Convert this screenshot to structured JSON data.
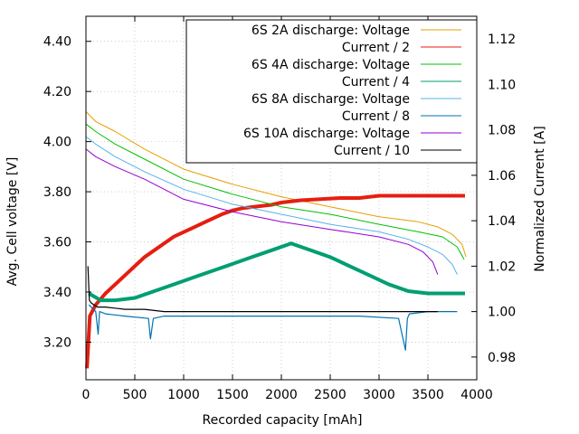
{
  "chart_data": {
    "type": "line",
    "xlabel": "Recorded capacity [mAh]",
    "ylabel": "Avg. Cell voltage [V]",
    "y2label": "Normalized Current [A]",
    "xlim": [
      0,
      4000
    ],
    "ylim": [
      3.05,
      4.5
    ],
    "y2lim": [
      0.97,
      1.13
    ],
    "xticks": [
      0,
      500,
      1000,
      1500,
      2000,
      2500,
      3000,
      3500,
      4000
    ],
    "yticks": [
      3.2,
      3.4,
      3.6,
      3.8,
      4.0,
      4.2,
      4.4
    ],
    "y2ticks": [
      0.98,
      1.0,
      1.02,
      1.04,
      1.06,
      1.08,
      1.1,
      1.12
    ],
    "xtick_labels": [
      "0",
      "500",
      "1000",
      "1500",
      "2000",
      "2500",
      "3000",
      "3500",
      "4000"
    ],
    "ytick_labels": [
      "3.20",
      "3.40",
      "3.60",
      "3.80",
      "4.00",
      "4.20",
      "4.40"
    ],
    "y2tick_labels": [
      "0.98",
      "1.00",
      "1.02",
      "1.04",
      "1.06",
      "1.08",
      "1.10",
      "1.12"
    ],
    "legend": "top-right",
    "series": [
      {
        "name": "6S 2A discharge: Voltage",
        "axis": "y",
        "color": "#e69f00",
        "x": [
          0,
          100,
          300,
          600,
          1000,
          1500,
          2000,
          2500,
          3000,
          3400,
          3600,
          3750,
          3850,
          3890
        ],
        "y": [
          4.12,
          4.08,
          4.04,
          3.97,
          3.89,
          3.83,
          3.78,
          3.74,
          3.7,
          3.68,
          3.66,
          3.63,
          3.59,
          3.54
        ]
      },
      {
        "name": "Current / 2",
        "axis": "y2",
        "color": "#e51e10",
        "x": [
          10,
          40,
          100,
          200,
          300,
          400,
          500,
          600,
          700,
          800,
          900,
          1000,
          1100,
          1200,
          1300,
          1400,
          1500,
          1600,
          1700,
          1800,
          1900,
          2000,
          2100,
          2200,
          2400,
          2600,
          2800,
          3000,
          3200,
          3400,
          3600,
          3880
        ],
        "y": [
          0.975,
          0.998,
          1.003,
          1.008,
          1.012,
          1.016,
          1.02,
          1.024,
          1.027,
          1.03,
          1.033,
          1.035,
          1.037,
          1.039,
          1.041,
          1.043,
          1.0445,
          1.0455,
          1.046,
          1.0465,
          1.047,
          1.048,
          1.0485,
          1.049,
          1.0495,
          1.05,
          1.05,
          1.051,
          1.051,
          1.051,
          1.051,
          1.051
        ]
      },
      {
        "name": "6S 4A discharge: Voltage",
        "axis": "y",
        "color": "#00c000",
        "x": [
          0,
          100,
          300,
          600,
          1000,
          1500,
          2000,
          2500,
          3000,
          3400,
          3650,
          3800,
          3870
        ],
        "y": [
          4.07,
          4.04,
          3.99,
          3.93,
          3.85,
          3.79,
          3.74,
          3.71,
          3.67,
          3.64,
          3.62,
          3.58,
          3.53
        ]
      },
      {
        "name": "Current / 4",
        "axis": "y2",
        "color": "#009e73",
        "x": [
          30,
          150,
          300,
          500,
          700,
          900,
          1100,
          1300,
          1500,
          1700,
          1900,
          2100,
          2300,
          2500,
          2700,
          2900,
          3100,
          3300,
          3500,
          3700,
          3880
        ],
        "y": [
          1.008,
          1.005,
          1.005,
          1.006,
          1.009,
          1.012,
          1.015,
          1.018,
          1.021,
          1.024,
          1.027,
          1.03,
          1.027,
          1.024,
          1.02,
          1.016,
          1.012,
          1.009,
          1.008,
          1.008,
          1.008
        ]
      },
      {
        "name": "6S 8A discharge: Voltage",
        "axis": "y",
        "color": "#56b4e9",
        "x": [
          0,
          100,
          300,
          600,
          1000,
          1500,
          2000,
          2500,
          3000,
          3300,
          3500,
          3650,
          3750,
          3800
        ],
        "y": [
          4.02,
          3.99,
          3.94,
          3.88,
          3.81,
          3.75,
          3.71,
          3.67,
          3.64,
          3.61,
          3.58,
          3.55,
          3.51,
          3.47
        ]
      },
      {
        "name": "Current / 8",
        "axis": "y2",
        "color": "#0072b2",
        "x": [
          30,
          100,
          125,
          140,
          200,
          400,
          640,
          660,
          690,
          800,
          1200,
          1600,
          2000,
          2400,
          2800,
          3200,
          3270,
          3290,
          3310,
          3500,
          3800
        ],
        "y": [
          1.003,
          1.0,
          0.99,
          1.0,
          0.999,
          0.998,
          0.997,
          0.988,
          0.997,
          0.998,
          0.998,
          0.998,
          0.998,
          0.998,
          0.998,
          0.997,
          0.983,
          0.997,
          0.999,
          1.0,
          1.0
        ]
      },
      {
        "name": "6S 10A discharge: Voltage",
        "axis": "y",
        "color": "#9400d3",
        "x": [
          0,
          100,
          300,
          600,
          1000,
          1500,
          2000,
          2500,
          3000,
          3300,
          3450,
          3550,
          3600
        ],
        "y": [
          3.97,
          3.94,
          3.9,
          3.85,
          3.77,
          3.72,
          3.68,
          3.65,
          3.62,
          3.59,
          3.56,
          3.52,
          3.47
        ]
      },
      {
        "name": "Current / 10",
        "axis": "y2",
        "color": "#000000",
        "x": [
          20,
          35,
          50,
          80,
          120,
          200,
          400,
          600,
          800,
          1000,
          1500,
          2000,
          2500,
          3000,
          3500,
          3600
        ],
        "y": [
          1.02,
          1.005,
          1.004,
          1.003,
          1.002,
          1.002,
          1.001,
          1.001,
          1.0,
          1.0,
          1.0,
          1.0,
          1.0,
          1.0,
          1.0,
          1.0
        ]
      }
    ]
  }
}
